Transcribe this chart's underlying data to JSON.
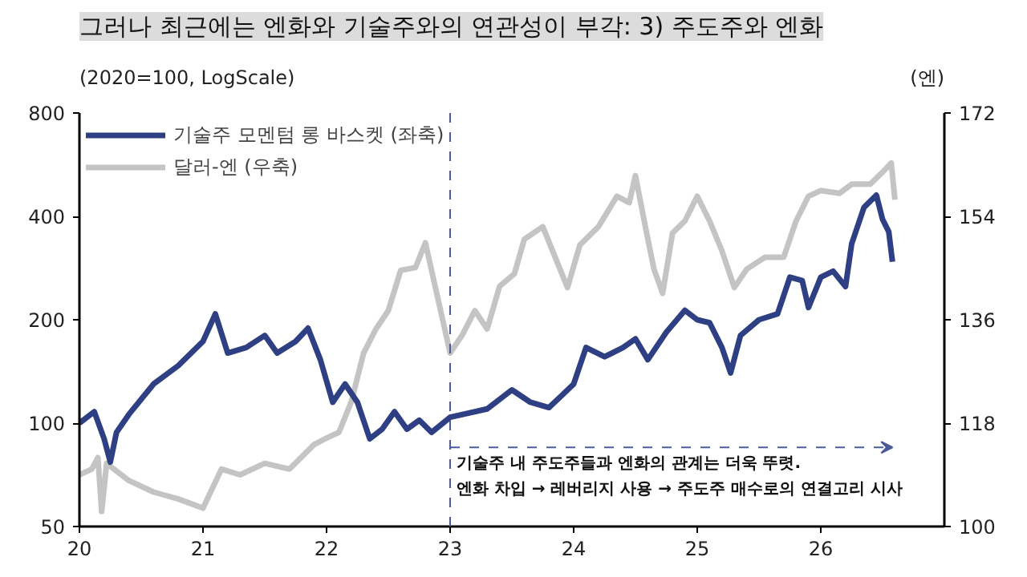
{
  "chart_data": {
    "type": "line",
    "title": "그러나 최근에는 엔화와 기술주와의 연관성이 부각: 3) 주도주와 엔화",
    "ylabel": "(2020=100, LogScale)",
    "y2label": "(엔)",
    "annotations": [
      "기술주 내 주도주들과 엔화의 관계는 더욱 뚜렷.",
      "엔화 차입 → 레버리지 사용 → 주도주 매수로의 연결고리 시사"
    ],
    "log": "y",
    "grid": false,
    "legend": "top left",
    "marker": "none",
    "line_style": "solid",
    "xlim": [
      20,
      27
    ],
    "xticks": [
      20,
      21,
      22,
      23,
      24,
      25,
      26
    ],
    "ylim": [
      50,
      800
    ],
    "yticks": [
      50,
      100,
      200,
      400,
      800
    ],
    "y2lim": [
      100,
      172
    ],
    "y2ticks": [
      100,
      118,
      136,
      154,
      172
    ],
    "ref_lines": [
      {
        "axis": "x",
        "value": 23,
        "label": null,
        "color": "#4a5a9a",
        "line_style": "dashed"
      }
    ],
    "series": [
      {
        "name": "달러-엔 (우축)",
        "color": "#c4c4c4",
        "axis": "y2",
        "x": [
          20.0,
          20.1,
          20.15,
          20.18,
          20.22,
          20.4,
          20.6,
          20.8,
          21.0,
          21.15,
          21.3,
          21.5,
          21.7,
          21.9,
          22.0,
          22.1,
          22.2,
          22.3,
          22.4,
          22.5,
          22.6,
          22.72,
          22.8,
          22.9,
          23.0,
          23.1,
          23.2,
          23.3,
          23.4,
          23.52,
          23.6,
          23.75,
          23.85,
          23.95,
          24.05,
          24.2,
          24.35,
          24.45,
          24.5,
          24.58,
          24.65,
          24.72,
          24.8,
          24.9,
          25.0,
          25.1,
          25.2,
          25.3,
          25.4,
          25.55,
          25.7,
          25.8,
          25.9,
          26.0,
          26.15,
          26.25,
          26.4,
          26.5,
          26.57,
          26.6
        ],
        "values": [
          109,
          110,
          112,
          102.6,
          111,
          108,
          106,
          104.8,
          103.2,
          110,
          109,
          111,
          110,
          114.3,
          115.4,
          116.4,
          121.7,
          130.2,
          134.4,
          137.6,
          144.6,
          145.1,
          149.4,
          139.8,
          130.2,
          133.4,
          137.6,
          134.4,
          141.8,
          144,
          150,
          152.2,
          146.9,
          141.6,
          149,
          152.2,
          157.5,
          156.4,
          161.1,
          152.2,
          144.8,
          140.6,
          151.1,
          153.2,
          157.5,
          153.2,
          148,
          141.6,
          144.8,
          146.9,
          146.9,
          153.2,
          157.5,
          158.5,
          158,
          159.6,
          159.6,
          161.7,
          163.3,
          156.9
        ]
      },
      {
        "name": "기술주 모멘텀 롱 바스켓 (좌축)",
        "color": "#2e3f84",
        "x": [
          20.0,
          20.12,
          20.2,
          20.25,
          20.3,
          20.4,
          20.6,
          20.8,
          21.0,
          21.1,
          21.2,
          21.35,
          21.5,
          21.6,
          21.75,
          21.85,
          21.95,
          22.05,
          22.15,
          22.25,
          22.35,
          22.45,
          22.55,
          22.65,
          22.75,
          22.85,
          23.0,
          23.3,
          23.5,
          23.65,
          23.8,
          23.9,
          24.0,
          24.1,
          24.25,
          24.4,
          24.5,
          24.6,
          24.75,
          24.9,
          25.0,
          25.1,
          25.2,
          25.27,
          25.35,
          25.5,
          25.65,
          25.75,
          25.85,
          25.9,
          26.0,
          26.1,
          26.2,
          26.25,
          26.35,
          26.45,
          26.5,
          26.55,
          26.58
        ],
        "values": [
          100,
          108,
          90,
          77,
          94,
          106,
          130,
          147,
          173,
          208,
          160,
          166,
          180,
          160,
          173,
          189,
          153,
          115,
          130,
          115,
          90,
          96,
          108,
          96,
          102,
          94,
          104,
          110,
          125,
          115,
          111,
          120,
          130,
          166,
          156,
          166,
          176,
          153,
          184,
          213,
          200,
          196,
          166,
          140,
          180,
          200,
          208,
          266,
          260,
          217,
          266,
          277,
          250,
          333,
          425,
          461,
          392,
          361,
          295
        ]
      }
    ]
  }
}
